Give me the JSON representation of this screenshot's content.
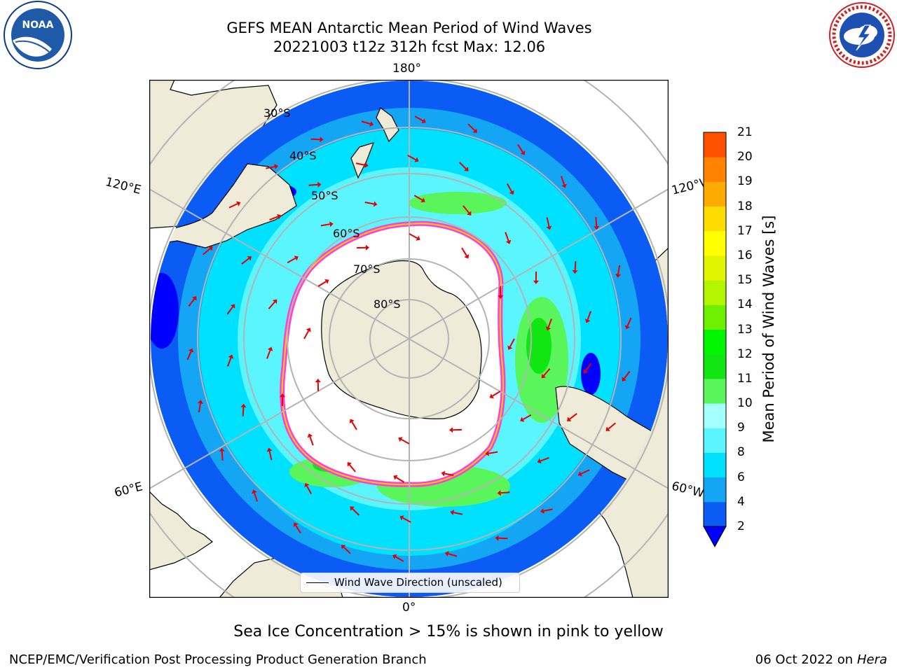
{
  "title": {
    "line1": "GEFS MEAN Antarctic Mean Period of Wind Waves",
    "line2": "20221003 t12z 312h fcst   Max: 12.06"
  },
  "logos": {
    "left": "NOAA",
    "right": "NATIONAL WEATHER SERVICE"
  },
  "map": {
    "projection": "south-polar-stereographic",
    "longitude_labels": [
      "180°",
      "120°E",
      "120°W",
      "60°E",
      "60°W",
      "0°"
    ],
    "latitude_labels": [
      "30°S",
      "40°S",
      "50°S",
      "60°S",
      "70°S",
      "80°S"
    ]
  },
  "legend": {
    "label": "Wind Wave Direction (unscaled)"
  },
  "colorbar": {
    "label": "Mean Period of Wind Waves [s]",
    "ticks": [
      "2",
      "4",
      "6",
      "8",
      "9",
      "10",
      "11",
      "12",
      "13",
      "14",
      "15",
      "16",
      "17",
      "18",
      "19",
      "20",
      "21"
    ],
    "colors": [
      "#0a5cf5",
      "#14a5f5",
      "#00e1ff",
      "#5af5ff",
      "#a5ffff",
      "#5af55a",
      "#12e612",
      "#00f500",
      "#6ef000",
      "#b4f500",
      "#e1f500",
      "#ffff00",
      "#ffdc00",
      "#ffaa00",
      "#ff8200",
      "#ff5000",
      "#ff2800",
      "#ff0000"
    ],
    "extend_color": "#0000ff"
  },
  "caption": "Sea Ice Concentration > 15% is shown in pink to yellow",
  "footer": {
    "left": "NCEP/EMC/Verification Post Processing Product Generation Branch",
    "date": "06 Oct 2022 on ",
    "host": "Hera"
  }
}
